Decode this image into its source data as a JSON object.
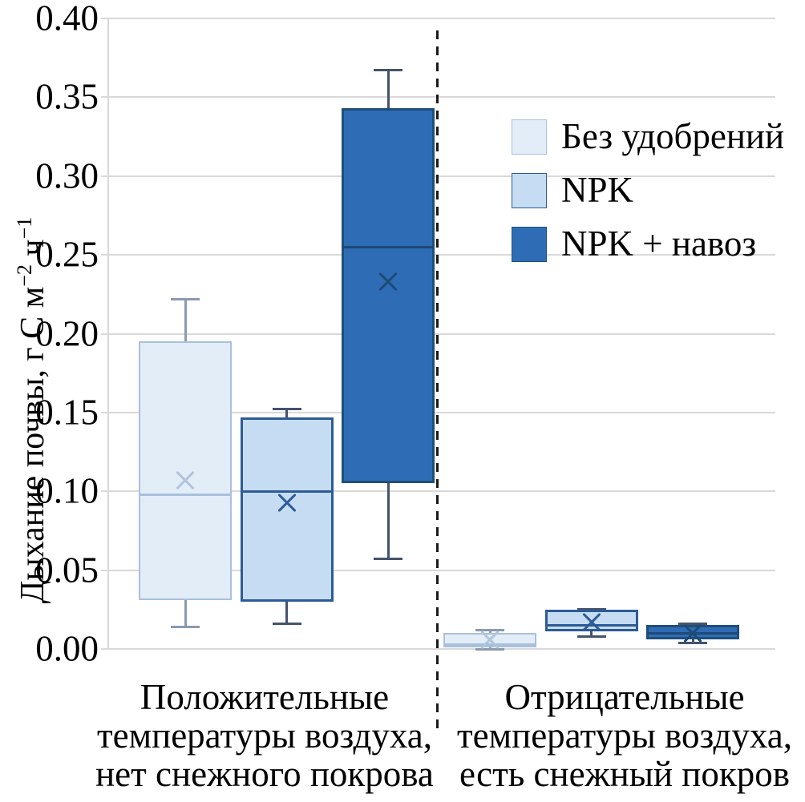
{
  "figure": {
    "background": "#ffffff",
    "grid_color": "#d9d9d9",
    "separator_color": "#1a1a1a"
  },
  "chart_data": {
    "type": "boxplot",
    "title": "",
    "ylabel": "Дыхание почвы, г С м⁻² ч⁻¹",
    "ylabel_parts": {
      "prefix": "Дыхание почвы, г С м",
      "sup1": "−2",
      "mid": " ч",
      "sup2": "−1"
    },
    "xlabel": "",
    "ylim": [
      0.0,
      0.4
    ],
    "ytick_step": 0.05,
    "yticks": [
      "0.00",
      "0.05",
      "0.10",
      "0.15",
      "0.20",
      "0.25",
      "0.30",
      "0.35",
      "0.40"
    ],
    "grid": "horizontal",
    "legend_position": "upper-right-inside",
    "group_separator": {
      "style": "dashed",
      "between_groups": [
        0,
        1
      ]
    },
    "categories": [
      {
        "lines": [
          "Положительные",
          "температуры воздуха,",
          "нет снежного покрова"
        ]
      },
      {
        "lines": [
          "Отрицательные",
          "температуры воздуха,",
          "есть снежный покров"
        ]
      }
    ],
    "series": [
      {
        "name": "Без удобрений",
        "fill": "#e3edf8",
        "stroke": "#a9c0dc",
        "whisker": "#8b9aad",
        "median_color": "#a9c0dc",
        "mean_color": "#b0c4dc",
        "border_px": 2,
        "boxes": [
          {
            "group": 0,
            "whisker_low": 0.014,
            "q1": 0.031,
            "median": 0.098,
            "mean": 0.107,
            "q3": 0.195,
            "whisker_high": 0.222
          },
          {
            "group": 1,
            "whisker_low": 0.0,
            "q1": 0.001,
            "median": 0.003,
            "mean": 0.006,
            "q3": 0.01,
            "whisker_high": 0.012
          }
        ]
      },
      {
        "name": "NPK",
        "fill": "#c5dcf2",
        "stroke": "#2d5b96",
        "whisker": "#44546a",
        "median_color": "#2d5b96",
        "mean_color": "#2d5b96",
        "border_px": 3,
        "boxes": [
          {
            "group": 0,
            "whisker_low": 0.016,
            "q1": 0.03,
            "median": 0.1,
            "mean": 0.093,
            "q3": 0.147,
            "whisker_high": 0.152
          },
          {
            "group": 1,
            "whisker_low": 0.008,
            "q1": 0.011,
            "median": 0.015,
            "mean": 0.017,
            "q3": 0.025,
            "whisker_high": 0.025
          }
        ]
      },
      {
        "name": "NPK + навоз",
        "fill": "#2e6cb5",
        "stroke": "#1f4e79",
        "whisker": "#44546a",
        "median_color": "#1e4a76",
        "mean_color": "#1e4a76",
        "border_px": 3,
        "boxes": [
          {
            "group": 0,
            "whisker_low": 0.057,
            "q1": 0.105,
            "median": 0.255,
            "mean": 0.233,
            "q3": 0.343,
            "whisker_high": 0.367
          },
          {
            "group": 1,
            "whisker_low": 0.004,
            "q1": 0.006,
            "median": 0.01,
            "mean": 0.01,
            "q3": 0.015,
            "whisker_high": 0.016
          }
        ]
      }
    ]
  }
}
